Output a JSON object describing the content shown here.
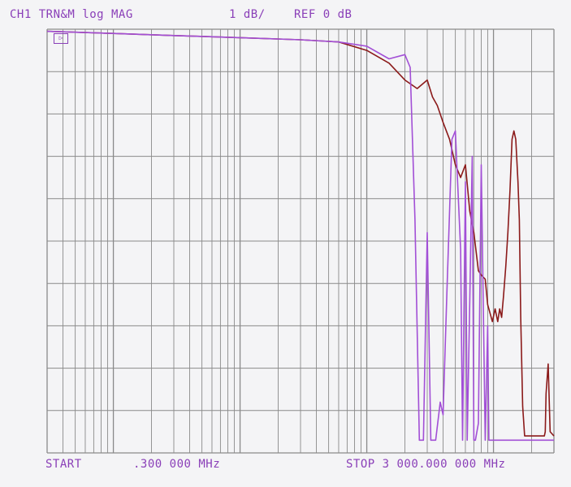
{
  "header": {
    "channel": "CH1 TRN&M log MAG",
    "scale": "1 dB/",
    "reference": "REF 0 dB"
  },
  "footer": {
    "start_label": "START",
    "start_value": ".300 000 MHz",
    "stop": "STOP 3 000.000 000 MHz"
  },
  "colors": {
    "grid": "#8a8a8a",
    "label": "#8a3fb8",
    "trace_1": "#8b1a1a",
    "trace_2": "#a24fd6"
  },
  "chart_data": {
    "type": "line",
    "xscale": "log",
    "xlim": [
      0.3,
      3000
    ],
    "ylim": [
      -10,
      0
    ],
    "yunit": "dB",
    "grid": true,
    "series": [
      {
        "color": "#8b1a1a",
        "x": [
          0.3,
          1,
          3,
          10,
          30,
          60,
          100,
          150,
          200,
          250,
          300,
          330,
          360,
          400,
          450,
          500,
          550,
          600,
          650,
          700,
          760,
          800,
          860,
          900,
          980,
          1030,
          1080,
          1120,
          1160,
          1200,
          1250,
          1300,
          1350,
          1400,
          1450,
          1500,
          1560,
          1600,
          1640,
          1700,
          1760,
          1800,
          1880,
          1950,
          2050,
          2150,
          2200,
          2260,
          2320,
          2400,
          2450,
          2520,
          2560,
          2600,
          2700,
          2800,
          3000
        ],
        "y": [
          -0.05,
          -0.1,
          -0.15,
          -0.2,
          -0.25,
          -0.3,
          -0.5,
          -0.8,
          -1.2,
          -1.4,
          -1.2,
          -1.6,
          -1.8,
          -2.2,
          -2.6,
          -3.2,
          -3.5,
          -3.2,
          -4.3,
          -4.8,
          -5.7,
          -5.8,
          -5.9,
          -6.5,
          -6.9,
          -6.6,
          -6.9,
          -6.6,
          -6.8,
          -6.3,
          -5.6,
          -4.8,
          -3.8,
          -2.6,
          -2.4,
          -2.6,
          -3.6,
          -4.5,
          -6.8,
          -8.9,
          -9.6,
          -9.6,
          -9.6,
          -9.6,
          -9.6,
          -9.6,
          -9.6,
          -9.6,
          -9.6,
          -9.6,
          -9.6,
          -9.6,
          -9.5,
          -8.6,
          -7.9,
          -9.5,
          -9.6
        ]
      },
      {
        "color": "#a24fd6",
        "x": [
          0.3,
          1,
          3,
          10,
          30,
          60,
          100,
          150,
          200,
          220,
          240,
          260,
          280,
          300,
          320,
          330,
          350,
          380,
          400,
          430,
          470,
          500,
          550,
          570,
          600,
          620,
          650,
          680,
          700,
          720,
          760,
          800,
          860,
          900,
          920,
          960,
          1000,
          1050,
          1100,
          1150,
          1200,
          1240,
          1280,
          1300,
          1330,
          1360,
          1400,
          1450,
          1500,
          1600,
          1800,
          2000,
          2500,
          3000
        ],
        "y": [
          -0.05,
          -0.1,
          -0.15,
          -0.2,
          -0.25,
          -0.3,
          -0.4,
          -0.7,
          -0.6,
          -0.9,
          -4.5,
          -9.7,
          -9.7,
          -4.8,
          -9.7,
          -9.7,
          -9.7,
          -8.8,
          -9.1,
          -6.1,
          -2.6,
          -2.4,
          -5.2,
          -9.7,
          -3.6,
          -9.7,
          -6.4,
          -3.0,
          -9.7,
          -9.7,
          -9.3,
          -3.2,
          -9.7,
          -7.0,
          -9.7,
          -9.7,
          -9.7,
          -9.7,
          -9.7,
          -9.7,
          -9.7,
          -9.7,
          -9.7,
          -9.7,
          -9.7,
          -9.7,
          -9.7,
          -9.7,
          -9.7,
          -9.7,
          -9.7,
          -9.7,
          -9.7,
          -9.7
        ]
      }
    ]
  }
}
